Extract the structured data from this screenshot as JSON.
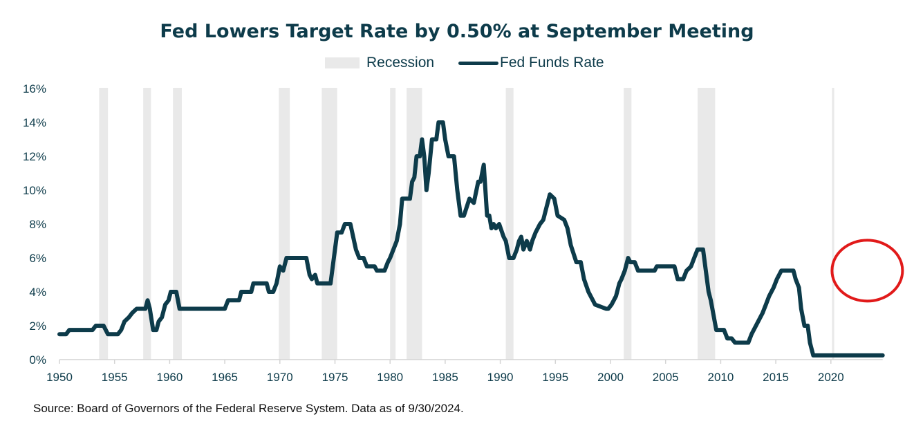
{
  "chart_data": {
    "type": "line",
    "title": "Fed Lowers Target Rate by 0.50% at September Meeting",
    "xlabel": "",
    "ylabel": "",
    "xlim": [
      1950,
      2024.7
    ],
    "ylim": [
      0,
      16
    ],
    "x_ticks": [
      1950,
      1955,
      1960,
      1965,
      1970,
      1975,
      1980,
      1985,
      1990,
      1995,
      2000,
      2005,
      2010,
      2015,
      2020
    ],
    "y_ticks": [
      0,
      2,
      4,
      6,
      8,
      10,
      12,
      14,
      16
    ],
    "y_tick_format": "percent",
    "grid": false,
    "legend": {
      "placement": "top-center",
      "entries": [
        {
          "label": "Recession",
          "type": "band",
          "color": "#e9e9e9"
        },
        {
          "label": "Fed Funds Rate",
          "type": "line",
          "color": "#0d3b4a"
        }
      ]
    },
    "recessions": [
      [
        1953.6,
        1954.4
      ],
      [
        1957.6,
        1958.3
      ],
      [
        1960.3,
        1961.1
      ],
      [
        1969.9,
        1970.9
      ],
      [
        1973.8,
        1975.2
      ],
      [
        1980.0,
        1980.5
      ],
      [
        1981.5,
        1982.9
      ],
      [
        1990.5,
        1991.2
      ],
      [
        2001.2,
        2001.9
      ],
      [
        2007.9,
        2009.5
      ],
      [
        2020.1,
        2020.3
      ]
    ],
    "series": [
      {
        "name": "Fed Funds Rate",
        "color": "#0d3b4a",
        "points": [
          [
            1950.0,
            1.5
          ],
          [
            1950.6,
            1.5
          ],
          [
            1950.9,
            1.75
          ],
          [
            1953.0,
            1.75
          ],
          [
            1953.3,
            2.0
          ],
          [
            1954.0,
            2.0
          ],
          [
            1954.4,
            1.5
          ],
          [
            1955.3,
            1.5
          ],
          [
            1955.6,
            1.75
          ],
          [
            1955.9,
            2.25
          ],
          [
            1956.3,
            2.5
          ],
          [
            1956.6,
            2.75
          ],
          [
            1957.0,
            3.0
          ],
          [
            1957.8,
            3.0
          ],
          [
            1958.0,
            3.5
          ],
          [
            1958.2,
            3.0
          ],
          [
            1958.5,
            1.75
          ],
          [
            1958.8,
            1.75
          ],
          [
            1959.0,
            2.25
          ],
          [
            1959.3,
            2.5
          ],
          [
            1959.6,
            3.25
          ],
          [
            1959.9,
            3.5
          ],
          [
            1960.1,
            4.0
          ],
          [
            1960.6,
            4.0
          ],
          [
            1960.9,
            3.0
          ],
          [
            1965.0,
            3.0
          ],
          [
            1965.3,
            3.5
          ],
          [
            1966.3,
            3.5
          ],
          [
            1966.5,
            4.0
          ],
          [
            1967.4,
            4.0
          ],
          [
            1967.6,
            4.5
          ],
          [
            1968.8,
            4.5
          ],
          [
            1969.0,
            4.0
          ],
          [
            1969.4,
            4.0
          ],
          [
            1969.7,
            4.5
          ],
          [
            1970.0,
            5.5
          ],
          [
            1970.3,
            5.25
          ],
          [
            1970.6,
            6.0
          ],
          [
            1972.4,
            6.0
          ],
          [
            1972.7,
            5.0
          ],
          [
            1972.9,
            4.75
          ],
          [
            1973.2,
            5.0
          ],
          [
            1973.4,
            4.5
          ],
          [
            1974.6,
            4.5
          ],
          [
            1974.9,
            6.0
          ],
          [
            1975.2,
            7.5
          ],
          [
            1975.6,
            7.5
          ],
          [
            1975.9,
            8.0
          ],
          [
            1976.4,
            8.0
          ],
          [
            1976.9,
            6.5
          ],
          [
            1977.2,
            6.0
          ],
          [
            1977.6,
            6.0
          ],
          [
            1977.9,
            5.5
          ],
          [
            1978.6,
            5.5
          ],
          [
            1978.8,
            5.25
          ],
          [
            1979.5,
            5.25
          ],
          [
            1979.8,
            5.75
          ],
          [
            1980.0,
            6.0
          ],
          [
            1980.3,
            6.5
          ],
          [
            1980.6,
            7.0
          ],
          [
            1980.9,
            8.0
          ],
          [
            1981.1,
            9.5
          ],
          [
            1981.8,
            9.5
          ],
          [
            1982.0,
            10.5
          ],
          [
            1982.2,
            10.75
          ],
          [
            1982.4,
            12.0
          ],
          [
            1982.7,
            12.0
          ],
          [
            1982.9,
            13.0
          ],
          [
            1983.1,
            12.0
          ],
          [
            1983.3,
            10.0
          ],
          [
            1983.5,
            11.0
          ],
          [
            1983.8,
            13.0
          ],
          [
            1984.2,
            13.0
          ],
          [
            1984.4,
            14.0
          ],
          [
            1984.8,
            14.0
          ],
          [
            1985.0,
            13.0
          ],
          [
            1985.3,
            12.0
          ],
          [
            1985.8,
            12.0
          ],
          [
            1986.1,
            10.0
          ],
          [
            1986.4,
            8.5
          ],
          [
            1986.7,
            8.5
          ],
          [
            1987.2,
            9.5
          ],
          [
            1987.6,
            9.25
          ],
          [
            1988.0,
            10.5
          ],
          [
            1988.2,
            10.5
          ],
          [
            1988.5,
            11.5
          ],
          [
            1988.8,
            8.5
          ],
          [
            1989.0,
            8.5
          ],
          [
            1989.2,
            7.75
          ],
          [
            1989.4,
            8.0
          ],
          [
            1989.6,
            7.75
          ],
          [
            1989.9,
            8.0
          ],
          [
            1990.3,
            7.25
          ],
          [
            1990.5,
            7.0
          ],
          [
            1990.8,
            6.0
          ],
          [
            1991.2,
            6.0
          ],
          [
            1991.5,
            6.5
          ],
          [
            1991.7,
            7.0
          ],
          [
            1991.9,
            7.25
          ],
          [
            1992.1,
            6.5
          ],
          [
            1992.4,
            7.0
          ],
          [
            1992.7,
            6.5
          ],
          [
            1992.9,
            7.0
          ],
          [
            1993.2,
            7.5
          ],
          [
            1993.6,
            8.0
          ],
          [
            1993.9,
            8.25
          ],
          [
            1994.2,
            9.0
          ],
          [
            1994.5,
            9.75
          ],
          [
            1994.9,
            9.5
          ],
          [
            1995.2,
            8.5
          ],
          [
            1995.8,
            8.25
          ],
          [
            1996.1,
            7.75
          ],
          [
            1996.4,
            6.75
          ],
          [
            1996.9,
            5.75
          ],
          [
            1997.3,
            5.75
          ],
          [
            1997.6,
            4.75
          ],
          [
            1998.0,
            4.0
          ],
          [
            1998.2,
            3.75
          ],
          [
            1998.6,
            3.25
          ],
          [
            1999.6,
            3.0
          ],
          [
            1999.8,
            3.0
          ],
          [
            2000.1,
            3.25
          ],
          [
            2000.5,
            3.75
          ],
          [
            2000.8,
            4.5
          ],
          [
            2001.0,
            4.75
          ],
          [
            2001.3,
            5.25
          ],
          [
            2001.6,
            6.0
          ],
          [
            2001.8,
            5.75
          ],
          [
            2002.2,
            5.75
          ],
          [
            2002.5,
            5.25
          ],
          [
            2004.0,
            5.25
          ],
          [
            2004.2,
            5.5
          ],
          [
            2005.8,
            5.5
          ],
          [
            2006.1,
            4.75
          ],
          [
            2006.6,
            4.75
          ],
          [
            2006.9,
            5.25
          ],
          [
            2007.3,
            5.5
          ],
          [
            2007.6,
            6.0
          ],
          [
            2007.9,
            6.5
          ],
          [
            2008.4,
            6.5
          ],
          [
            2008.6,
            5.5
          ],
          [
            2008.9,
            4.0
          ],
          [
            2009.1,
            3.5
          ],
          [
            2009.6,
            1.75
          ],
          [
            2010.0,
            1.75
          ],
          [
            2010.3,
            1.75
          ],
          [
            2010.6,
            1.25
          ],
          [
            2011.0,
            1.25
          ],
          [
            2011.3,
            1.0
          ],
          [
            2012.5,
            1.0
          ],
          [
            2012.8,
            1.5
          ],
          [
            2013.0,
            1.75
          ],
          [
            2013.4,
            2.25
          ],
          [
            2013.8,
            2.75
          ],
          [
            2014.1,
            3.25
          ],
          [
            2014.4,
            3.75
          ],
          [
            2014.8,
            4.25
          ],
          [
            2015.1,
            4.75
          ],
          [
            2015.5,
            5.25
          ],
          [
            2016.6,
            5.25
          ],
          [
            2016.8,
            4.75
          ],
          [
            2017.1,
            4.25
          ],
          [
            2017.3,
            3.0
          ],
          [
            2017.6,
            2.0
          ],
          [
            2017.9,
            2.0
          ],
          [
            2018.1,
            1.0
          ],
          [
            2018.4,
            0.25
          ],
          [
            2024.7,
            0.25
          ]
        ]
      }
    ],
    "annotations": [
      {
        "type": "ellipse",
        "color": "#e11a1a",
        "target": "2022-2024 rate hikes and September 2024 cut"
      }
    ]
  },
  "source_note": "Source: Board of Governors of the Federal Reserve System. Data as of 9/30/2024."
}
